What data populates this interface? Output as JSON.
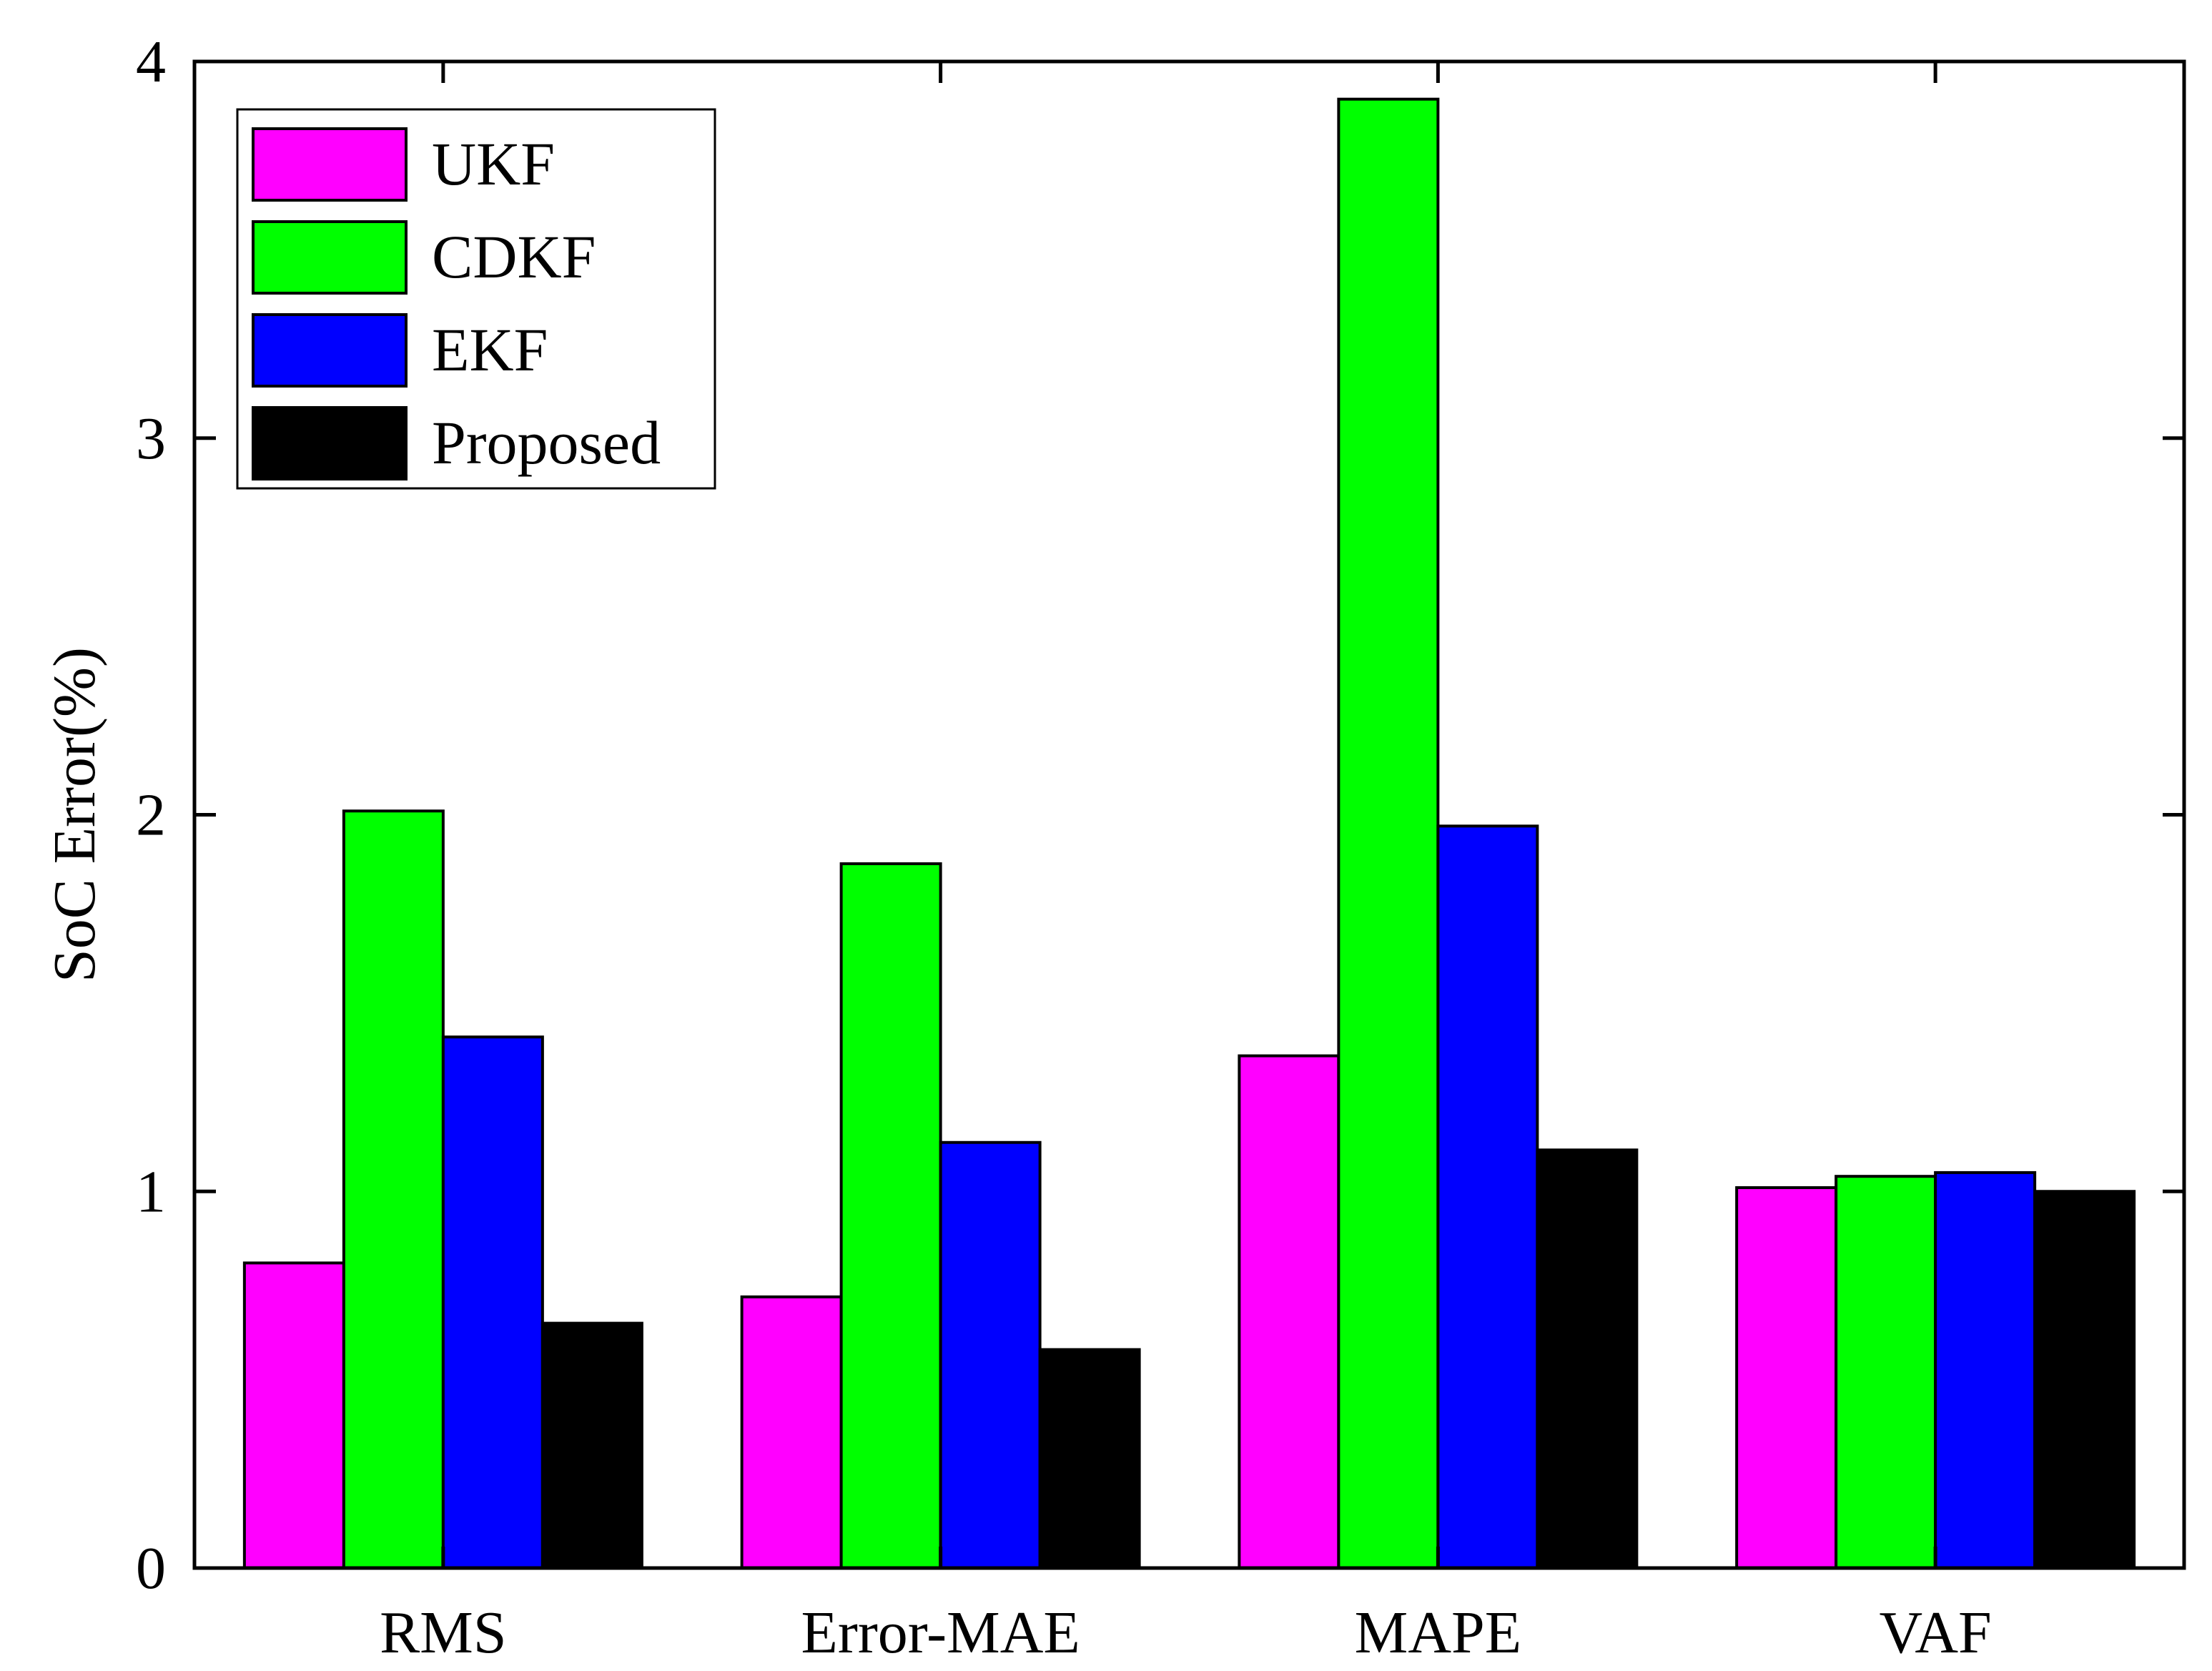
{
  "chart_data": {
    "type": "bar",
    "title": "",
    "xlabel": "",
    "ylabel": "SoC Error(%)",
    "ylim": [
      0,
      4
    ],
    "yticks": [
      "0",
      "1",
      "2",
      "3",
      "4"
    ],
    "categories": [
      "RMS",
      "Error-MAE",
      "MAPE",
      "VAF"
    ],
    "series": [
      {
        "name": "UKF",
        "color": "#ff00ff",
        "values": [
          0.81,
          0.72,
          1.36,
          1.01
        ]
      },
      {
        "name": "CDKF",
        "color": "#00ff00",
        "values": [
          2.01,
          1.87,
          3.9,
          1.04
        ]
      },
      {
        "name": "EKF",
        "color": "#0000ff",
        "values": [
          1.41,
          1.13,
          1.97,
          1.05
        ]
      },
      {
        "name": "Proposed",
        "color": "#000000",
        "values": [
          0.65,
          0.58,
          1.11,
          1.0
        ]
      }
    ],
    "legend_position": "top-left",
    "grid": false
  }
}
